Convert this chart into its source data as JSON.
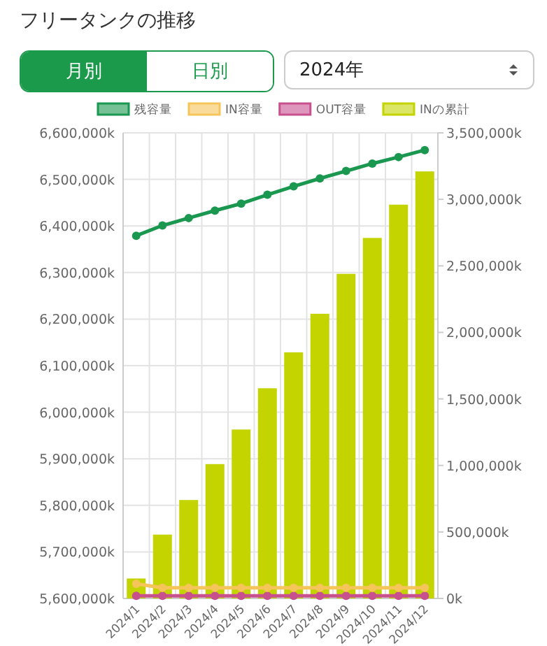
{
  "chart_data": {
    "type": "bar",
    "title": "フリータンクの推移",
    "annotations": [
      "月別",
      "日別",
      "2024年"
    ],
    "categories": [
      "2024/1",
      "2024/2",
      "2024/3",
      "2024/4",
      "2024/5",
      "2024/6",
      "2024/7",
      "2024/8",
      "2024/9",
      "2024/10",
      "2024/11",
      "2024/12"
    ],
    "series": [
      {
        "name": "残容量",
        "type": "line",
        "color": "#1a9850",
        "values": [
          6379000,
          6401000,
          6417000,
          6433000,
          6448000,
          6467000,
          6485000,
          6502000,
          6518000,
          6534000,
          6548000,
          6563000
        ]
      },
      {
        "name": "IN容量",
        "type": "line",
        "axis": "y2",
        "color": "#f5c55a",
        "values": [
          110000,
          80000,
          80000,
          80000,
          80000,
          80000,
          80000,
          80000,
          80000,
          80000,
          80000,
          80000
        ]
      },
      {
        "name": "OUT容量",
        "type": "line",
        "axis": "y2",
        "color": "#c8508f",
        "values": [
          20000,
          20000,
          20000,
          20000,
          20000,
          20000,
          20000,
          20000,
          20000,
          20000,
          20000,
          20000
        ]
      },
      {
        "name": "INの累計",
        "axis": "y2",
        "color": "#c3d400",
        "values": [
          150000,
          480000,
          740000,
          1010000,
          1270000,
          1580000,
          1850000,
          2140000,
          2440000,
          2710000,
          2960000,
          3210000
        ]
      }
    ],
    "ylim": [
      5600000,
      6600000
    ],
    "yticks": [
      {
        "value": 5600000,
        "label": "5,600,000k"
      },
      {
        "value": 5700000,
        "label": "5,700,000k"
      },
      {
        "value": 5800000,
        "label": "5,800,000k"
      },
      {
        "value": 5900000,
        "label": "5,900,000k"
      },
      {
        "value": 6000000,
        "label": "6,000,000k"
      },
      {
        "value": 6100000,
        "label": "6,100,000k"
      },
      {
        "value": 6200000,
        "label": "6,200,000k"
      },
      {
        "value": 6300000,
        "label": "6,300,000k"
      },
      {
        "value": 6400000,
        "label": "6,400,000k"
      },
      {
        "value": 6500000,
        "label": "6,500,000k"
      },
      {
        "value": 6600000,
        "label": "6,600,000k"
      }
    ],
    "y2lim": [
      0,
      3500000
    ],
    "y2ticks": [
      {
        "value": 0,
        "label": "0k"
      },
      {
        "value": 500000,
        "label": "500,000k"
      },
      {
        "value": 1000000,
        "label": "1,000,000k"
      },
      {
        "value": 1500000,
        "label": "1,500,000k"
      },
      {
        "value": 2000000,
        "label": "2,000,000k"
      },
      {
        "value": 2500000,
        "label": "2,500,000k"
      },
      {
        "value": 3000000,
        "label": "3,000,000k"
      },
      {
        "value": 3500000,
        "label": "3,500,000k"
      }
    ],
    "grid": true,
    "legend": "top",
    "marker": "circle"
  }
}
